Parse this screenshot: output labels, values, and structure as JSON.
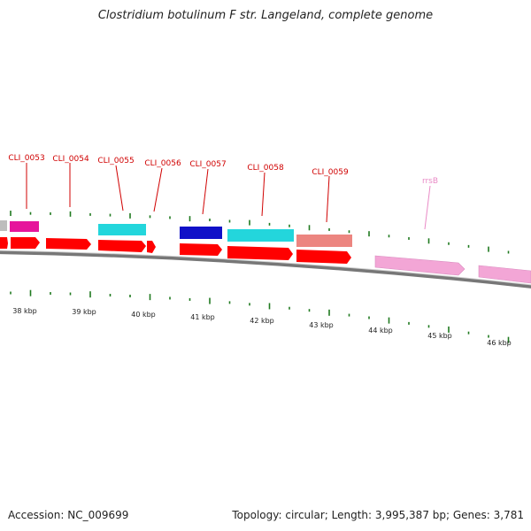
{
  "title": "Clostridium botulinum F str. Langeland, complete genome",
  "footer": {
    "accession": "Accession: NC_009699",
    "summary": "Topology: circular; Length: 3,995,387 bp; Genes: 3,781"
  },
  "gene_labels": [
    {
      "id": "CLI_0053",
      "color": "#d00000"
    },
    {
      "id": "CLI_0054",
      "color": "#d00000"
    },
    {
      "id": "CLI_0055",
      "color": "#d00000"
    },
    {
      "id": "CLI_0056",
      "color": "#d00000"
    },
    {
      "id": "CLI_0057",
      "color": "#d00000"
    },
    {
      "id": "CLI_0058",
      "color": "#d00000"
    },
    {
      "id": "CLI_0059",
      "color": "#d00000"
    },
    {
      "id": "rrsB",
      "color": "#e98ac6"
    }
  ],
  "kbp_labels": [
    "38 kbp",
    "39 kbp",
    "40 kbp",
    "41 kbp",
    "42 kbp",
    "43 kbp",
    "44 kbp",
    "45 kbp",
    "46 kbp"
  ],
  "colors": {
    "cds_red": "#ff0000",
    "rrna_pink": "#f3a6d6",
    "magenta": "#e6159b",
    "cyan": "#23d6dc",
    "blue": "#1010c8",
    "salmon": "#ec8580",
    "grey": "#bdbdbd",
    "tick_green": "#1f7a1f",
    "backbone": "#777777"
  }
}
